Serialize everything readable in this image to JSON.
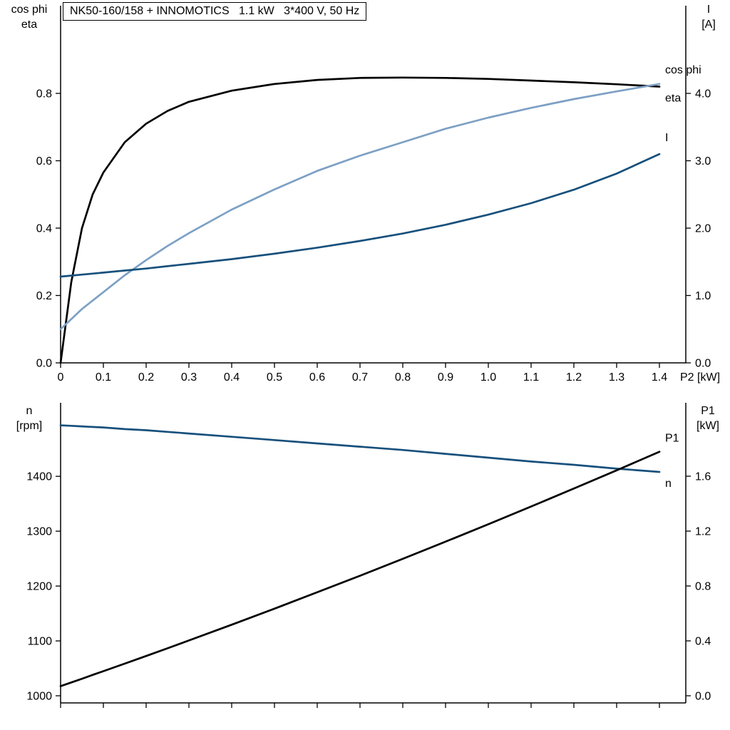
{
  "title_box": "NK50-160/158 + INNOMOTICS   1.1 kW   3*400 V, 50 Hz",
  "colors": {
    "eta": "#000000",
    "cos_phi": "#7da0c4",
    "current": "#17507c",
    "speed": "#17507c",
    "p1": "#000000",
    "axis": "#000000"
  },
  "chart_data": [
    {
      "type": "line",
      "title": "NK50-160/158 + INNOMOTICS   1.1 kW   3*400 V, 50 Hz",
      "x_axis": {
        "label": "P2 [kW]",
        "range": [
          0,
          1.4617
        ],
        "tick_values": [
          0,
          0.1,
          0.2,
          0.3,
          0.4,
          0.5,
          0.6,
          0.7,
          0.8,
          0.9,
          1.0,
          1.1,
          1.2,
          1.3,
          1.4
        ],
        "tick_labels": [
          "0",
          "0.1",
          "0.2",
          "0.3",
          "0.4",
          "0.5",
          "0.6",
          "0.7",
          "0.8",
          "0.9",
          "1.0",
          "1.1",
          "1.2",
          "1.3",
          "1.4"
        ]
      },
      "left_axis": {
        "title_lines": [
          "cos phi",
          "eta"
        ],
        "range": [
          0,
          1.0603
        ],
        "tick_values": [
          0.0,
          0.2,
          0.4,
          0.6,
          0.8
        ],
        "tick_labels": [
          "0.0",
          "0.2",
          "0.4",
          "0.6",
          "0.8"
        ]
      },
      "right_axis": {
        "title_lines": [
          "I",
          "[A]"
        ],
        "range": [
          0,
          5.3016
        ],
        "tick_values": [
          0.0,
          1.0,
          2.0,
          3.0,
          4.0
        ],
        "tick_labels": [
          "0.0",
          "1.0",
          "2.0",
          "3.0",
          "4.0"
        ]
      },
      "x": [
        0,
        0.025,
        0.05,
        0.075,
        0.1,
        0.15,
        0.2,
        0.25,
        0.3,
        0.4,
        0.5,
        0.6,
        0.7,
        0.8,
        0.9,
        1.0,
        1.1,
        1.2,
        1.3,
        1.4
      ],
      "series": [
        {
          "name": "eta",
          "axis": "left",
          "color": "#000000",
          "values": [
            0,
            0.24,
            0.4,
            0.5,
            0.565,
            0.655,
            0.71,
            0.748,
            0.775,
            0.808,
            0.828,
            0.84,
            0.846,
            0.847,
            0.846,
            0.843,
            0.838,
            0.833,
            0.827,
            0.82
          ]
        },
        {
          "name": "cos phi",
          "axis": "left",
          "color": "#7da0c4",
          "values": [
            0.1,
            0.13,
            0.16,
            0.185,
            0.21,
            0.26,
            0.305,
            0.347,
            0.385,
            0.455,
            0.515,
            0.57,
            0.615,
            0.655,
            0.695,
            0.728,
            0.757,
            0.783,
            0.806,
            0.828
          ]
        },
        {
          "name": "I",
          "axis": "right",
          "color": "#17507c",
          "values": [
            1.28,
            1.295,
            1.31,
            1.325,
            1.34,
            1.37,
            1.4,
            1.435,
            1.47,
            1.54,
            1.62,
            1.71,
            1.81,
            1.92,
            2.05,
            2.2,
            2.37,
            2.57,
            2.81,
            3.1
          ]
        }
      ]
    },
    {
      "type": "line",
      "title": "",
      "x_axis": {
        "label": "",
        "range": [
          0,
          1.4617
        ],
        "tick_values": [
          0,
          0.1,
          0.2,
          0.3,
          0.4,
          0.5,
          0.6,
          0.7,
          0.8,
          0.9,
          1.0,
          1.1,
          1.2,
          1.3,
          1.4
        ],
        "tick_labels": []
      },
      "left_axis": {
        "title_lines": [
          "n",
          "[rpm]"
        ],
        "range": [
          987,
          1534
        ],
        "tick_values": [
          1000,
          1100,
          1200,
          1300,
          1400
        ],
        "tick_labels": [
          "1000",
          "1100",
          "1200",
          "1300",
          "1400"
        ]
      },
      "right_axis": {
        "title_lines": [
          "P1",
          "[kW]"
        ],
        "range": [
          -0.052,
          2.135
        ],
        "tick_values": [
          0.0,
          0.4,
          0.8,
          1.2,
          1.6
        ],
        "tick_labels": [
          "0.0",
          "0.4",
          "0.8",
          "1.2",
          "1.6"
        ]
      },
      "x": [
        0,
        0.025,
        0.05,
        0.075,
        0.1,
        0.15,
        0.2,
        0.25,
        0.3,
        0.4,
        0.5,
        0.6,
        0.7,
        0.8,
        0.9,
        1.0,
        1.1,
        1.2,
        1.3,
        1.4
      ],
      "series": [
        {
          "name": "n",
          "axis": "left",
          "color": "#17507c",
          "values": [
            1493,
            1492,
            1491,
            1490,
            1489,
            1486,
            1484,
            1481,
            1478,
            1472,
            1466,
            1460,
            1454,
            1448,
            1441,
            1434,
            1427,
            1421,
            1414,
            1408
          ]
        },
        {
          "name": "P1",
          "axis": "right",
          "color": "#000000",
          "values": [
            0.07,
            0.097,
            0.124,
            0.152,
            0.179,
            0.234,
            0.29,
            0.346,
            0.403,
            0.518,
            0.635,
            0.754,
            0.875,
            0.998,
            1.123,
            1.25,
            1.379,
            1.51,
            1.643,
            1.778
          ]
        }
      ]
    }
  ]
}
